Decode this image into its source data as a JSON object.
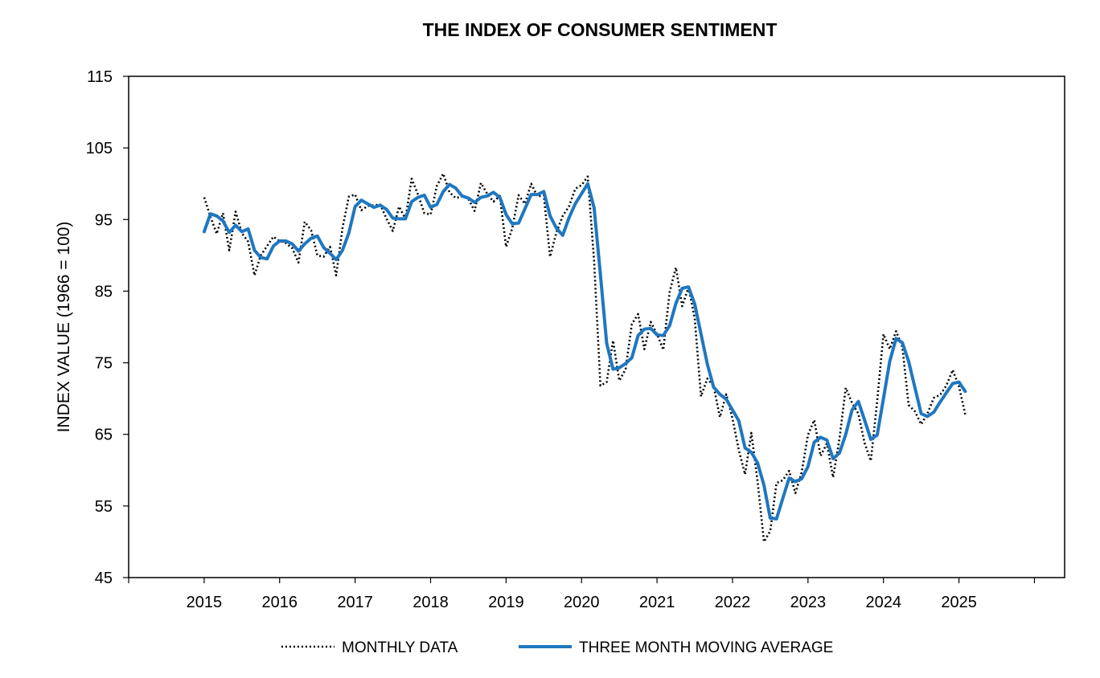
{
  "chart_data": {
    "type": "line",
    "title": "THE INDEX OF CONSUMER SENTIMENT",
    "xlabel": "",
    "ylabel": "INDEX VALUE (1966 = 100)",
    "ylim": [
      45,
      115
    ],
    "xlim": [
      2015,
      2026
    ],
    "x_ticks": [
      "2015",
      "2016",
      "2017",
      "2018",
      "2019",
      "2020",
      "2021",
      "2022",
      "2023",
      "2024",
      "2025"
    ],
    "y_ticks": [
      "45",
      "55",
      "65",
      "75",
      "85",
      "95",
      "105",
      "115"
    ],
    "grid": false,
    "legend_position": "bottom",
    "colors": {
      "monthly": "#000000",
      "average": "#1f77c0"
    },
    "series": [
      {
        "name": "MONTHLY DATA",
        "style": "dotted",
        "x": [
          2015.0,
          2015.083,
          2015.167,
          2015.25,
          2015.333,
          2015.417,
          2015.5,
          2015.583,
          2015.667,
          2015.75,
          2015.833,
          2015.917,
          2016.0,
          2016.083,
          2016.167,
          2016.25,
          2016.333,
          2016.417,
          2016.5,
          2016.583,
          2016.667,
          2016.75,
          2016.833,
          2016.917,
          2017.0,
          2017.083,
          2017.167,
          2017.25,
          2017.333,
          2017.417,
          2017.5,
          2017.583,
          2017.667,
          2017.75,
          2017.833,
          2017.917,
          2018.0,
          2018.083,
          2018.167,
          2018.25,
          2018.333,
          2018.417,
          2018.5,
          2018.583,
          2018.667,
          2018.75,
          2018.833,
          2018.917,
          2019.0,
          2019.083,
          2019.167,
          2019.25,
          2019.333,
          2019.417,
          2019.5,
          2019.583,
          2019.667,
          2019.75,
          2019.833,
          2019.917,
          2020.0,
          2020.083,
          2020.167,
          2020.25,
          2020.333,
          2020.417,
          2020.5,
          2020.583,
          2020.667,
          2020.75,
          2020.833,
          2020.917,
          2021.0,
          2021.083,
          2021.167,
          2021.25,
          2021.333,
          2021.417,
          2021.5,
          2021.583,
          2021.667,
          2021.75,
          2021.833,
          2021.917,
          2022.0,
          2022.083,
          2022.167,
          2022.25,
          2022.333,
          2022.417,
          2022.5,
          2022.583,
          2022.667,
          2022.75,
          2022.833,
          2022.917,
          2023.0,
          2023.083,
          2023.167,
          2023.25,
          2023.333,
          2023.417,
          2023.5,
          2023.583,
          2023.667,
          2023.75,
          2023.833,
          2023.917,
          2024.0,
          2024.083,
          2024.167,
          2024.25,
          2024.333,
          2024.417,
          2024.5,
          2024.583,
          2024.667,
          2024.75,
          2024.833,
          2024.917,
          2025.0,
          2025.083
        ],
        "values": [
          98.1,
          95.4,
          93.0,
          95.9,
          90.7,
          96.1,
          93.1,
          91.9,
          87.2,
          90.0,
          91.3,
          92.6,
          92.0,
          91.7,
          91.0,
          89.0,
          94.7,
          93.5,
          90.0,
          89.8,
          91.2,
          87.2,
          93.8,
          98.2,
          98.5,
          96.3,
          96.9,
          97.0,
          97.1,
          95.1,
          93.4,
          96.8,
          95.1,
          100.7,
          98.5,
          95.9,
          95.7,
          99.7,
          101.4,
          98.8,
          98.0,
          98.2,
          97.9,
          96.2,
          100.1,
          98.6,
          97.5,
          98.3,
          91.2,
          93.8,
          98.4,
          97.2,
          100.0,
          98.2,
          98.4,
          89.8,
          93.2,
          95.5,
          96.8,
          99.3,
          99.8,
          101.0,
          89.1,
          71.8,
          72.3,
          78.1,
          72.5,
          74.1,
          80.4,
          81.8,
          76.9,
          80.7,
          79.0,
          76.8,
          84.9,
          88.3,
          82.9,
          85.5,
          81.2,
          70.3,
          72.8,
          71.7,
          67.4,
          70.6,
          67.2,
          62.8,
          59.4,
          65.2,
          58.4,
          50.0,
          51.5,
          58.2,
          58.6,
          59.9,
          56.8,
          59.7,
          64.9,
          67.0,
          62.0,
          63.7,
          59.0,
          64.4,
          71.5,
          69.4,
          67.9,
          63.8,
          61.3,
          69.7,
          79.0,
          76.9,
          79.4,
          77.2,
          69.1,
          68.2,
          66.4,
          67.9,
          70.1,
          70.5,
          71.8,
          74.0,
          71.7,
          67.8
        ]
      },
      {
        "name": "THREE MONTH MOVING AVERAGE",
        "style": "solid",
        "x": [
          2015.0,
          2015.083,
          2015.167,
          2015.25,
          2015.333,
          2015.417,
          2015.5,
          2015.583,
          2015.667,
          2015.75,
          2015.833,
          2015.917,
          2016.0,
          2016.083,
          2016.167,
          2016.25,
          2016.333,
          2016.417,
          2016.5,
          2016.583,
          2016.667,
          2016.75,
          2016.833,
          2016.917,
          2017.0,
          2017.083,
          2017.167,
          2017.25,
          2017.333,
          2017.417,
          2017.5,
          2017.583,
          2017.667,
          2017.75,
          2017.833,
          2017.917,
          2018.0,
          2018.083,
          2018.167,
          2018.25,
          2018.333,
          2018.417,
          2018.5,
          2018.583,
          2018.667,
          2018.75,
          2018.833,
          2018.917,
          2019.0,
          2019.083,
          2019.167,
          2019.25,
          2019.333,
          2019.417,
          2019.5,
          2019.583,
          2019.667,
          2019.75,
          2019.833,
          2019.917,
          2020.0,
          2020.083,
          2020.167,
          2020.25,
          2020.333,
          2020.417,
          2020.5,
          2020.583,
          2020.667,
          2020.75,
          2020.833,
          2020.917,
          2021.0,
          2021.083,
          2021.167,
          2021.25,
          2021.333,
          2021.417,
          2021.5,
          2021.583,
          2021.667,
          2021.75,
          2021.833,
          2021.917,
          2022.0,
          2022.083,
          2022.167,
          2022.25,
          2022.333,
          2022.417,
          2022.5,
          2022.583,
          2022.667,
          2022.75,
          2022.833,
          2022.917,
          2023.0,
          2023.083,
          2023.167,
          2023.25,
          2023.333,
          2023.417,
          2023.5,
          2023.583,
          2023.667,
          2023.75,
          2023.833,
          2023.917,
          2024.0,
          2024.083,
          2024.167,
          2024.25,
          2024.333,
          2024.417,
          2024.5,
          2024.583,
          2024.667,
          2024.75,
          2024.833,
          2024.917,
          2025.0,
          2025.083
        ],
        "values": [
          93.3,
          95.8,
          95.5,
          94.8,
          93.2,
          94.2,
          93.3,
          93.7,
          90.7,
          89.7,
          89.5,
          91.3,
          92.0,
          92.0,
          91.6,
          90.6,
          91.6,
          92.4,
          92.7,
          91.1,
          90.3,
          89.4,
          90.7,
          93.1,
          96.8,
          97.7,
          97.2,
          96.7,
          97.0,
          96.4,
          95.2,
          95.1,
          95.1,
          97.5,
          98.1,
          98.4,
          96.7,
          97.1,
          98.9,
          99.9,
          99.4,
          98.3,
          98.0,
          97.4,
          98.1,
          98.3,
          98.8,
          98.1,
          95.7,
          94.4,
          94.5,
          96.5,
          98.5,
          98.5,
          98.9,
          95.5,
          93.8,
          92.8,
          95.2,
          97.2,
          98.6,
          100.0,
          96.6,
          87.3,
          77.7,
          74.1,
          74.3,
          74.9,
          75.7,
          78.8,
          79.7,
          79.8,
          78.9,
          78.8,
          80.2,
          83.3,
          85.4,
          85.6,
          83.2,
          79.0,
          74.8,
          71.6,
          70.6,
          69.9,
          68.4,
          66.9,
          63.1,
          62.5,
          61.0,
          57.9,
          53.3,
          53.2,
          56.1,
          58.9,
          58.4,
          58.8,
          60.5,
          63.9,
          64.6,
          64.2,
          61.6,
          62.4,
          65.0,
          68.4,
          69.6,
          67.0,
          64.3,
          64.9,
          70.0,
          75.2,
          78.4,
          77.8,
          75.2,
          71.5,
          67.9,
          67.5,
          68.1,
          69.5,
          70.8,
          72.1,
          72.3,
          71.0
        ]
      }
    ]
  }
}
